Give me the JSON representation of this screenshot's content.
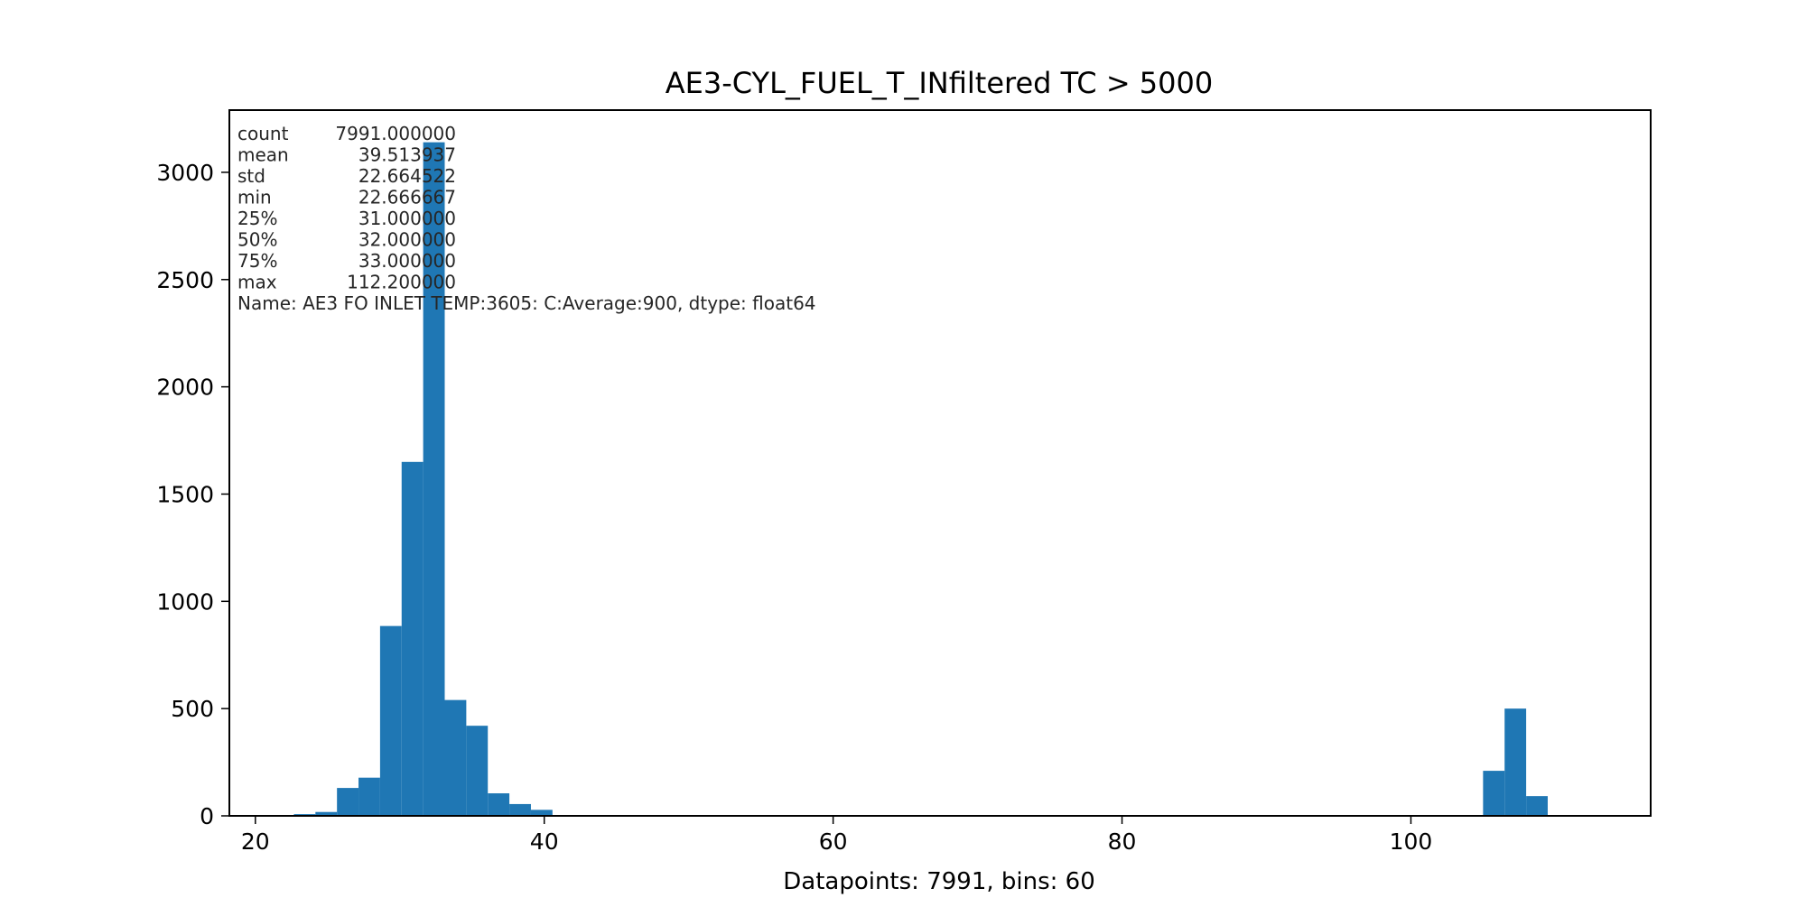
{
  "chart_data": {
    "type": "bar",
    "title": "AE3-CYL_FUEL_T_INfiltered TC > 5000",
    "xlabel": "Datapoints: 7991, bins: 60",
    "ylabel": "",
    "xlim": [
      18.2,
      116.6
    ],
    "ylim": [
      0,
      3290
    ],
    "xticks": [
      20,
      40,
      60,
      80,
      100
    ],
    "yticks": [
      0,
      500,
      1000,
      1500,
      2000,
      2500,
      3000
    ],
    "grid": false,
    "legend": "none",
    "bar_color": "#1f77b4",
    "bin_edges": [
      22.667,
      24.158,
      25.65,
      27.142,
      28.634,
      30.126,
      31.618,
      33.11,
      34.602,
      36.093,
      37.585,
      39.077,
      40.569
    ],
    "bins": [
      {
        "x0": 22.667,
        "x1": 24.158,
        "count": 8
      },
      {
        "x0": 24.158,
        "x1": 25.65,
        "count": 18
      },
      {
        "x0": 25.65,
        "x1": 27.142,
        "count": 130
      },
      {
        "x0": 27.142,
        "x1": 28.634,
        "count": 178
      },
      {
        "x0": 28.634,
        "x1": 30.126,
        "count": 885
      },
      {
        "x0": 30.126,
        "x1": 31.618,
        "count": 1650
      },
      {
        "x0": 31.618,
        "x1": 33.11,
        "count": 3140
      },
      {
        "x0": 33.11,
        "x1": 34.602,
        "count": 540
      },
      {
        "x0": 34.602,
        "x1": 36.093,
        "count": 420
      },
      {
        "x0": 36.093,
        "x1": 37.585,
        "count": 105
      },
      {
        "x0": 37.585,
        "x1": 39.077,
        "count": 55
      },
      {
        "x0": 39.077,
        "x1": 40.569,
        "count": 28
      },
      {
        "x0": 104.995,
        "x1": 106.487,
        "count": 210
      },
      {
        "x0": 106.487,
        "x1": 107.979,
        "count": 500
      },
      {
        "x0": 107.979,
        "x1": 109.471,
        "count": 92
      }
    ]
  },
  "stats": [
    {
      "label": "count",
      "value": "7991.000000"
    },
    {
      "label": "mean",
      "value": "39.513937"
    },
    {
      "label": "std",
      "value": "22.664522"
    },
    {
      "label": "min",
      "value": "22.666667"
    },
    {
      "label": "25%",
      "value": "31.000000"
    },
    {
      "label": "50%",
      "value": "32.000000"
    },
    {
      "label": "75%",
      "value": "33.000000"
    },
    {
      "label": "max",
      "value": "112.200000"
    }
  ],
  "stats_footer": "Name: AE3 FO INLET TEMP:3605:  C:Average:900, dtype: float64"
}
